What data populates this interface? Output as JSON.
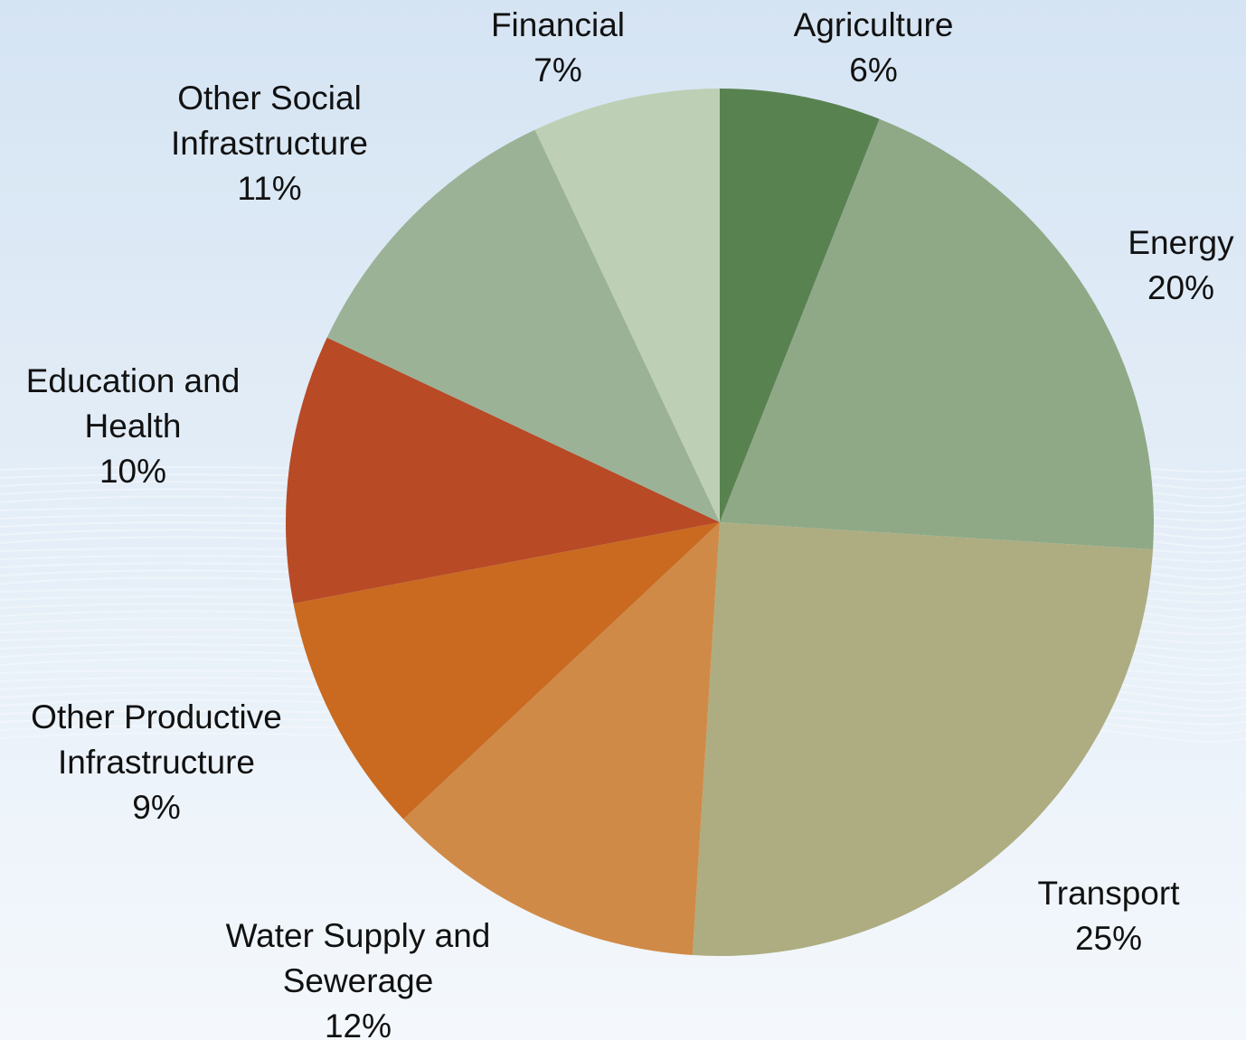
{
  "chart_data": {
    "type": "pie",
    "start_angle_deg": 0,
    "direction": "clockwise",
    "slices": [
      {
        "label": [
          "Agriculture"
        ],
        "value": 6,
        "percent_label": "6%",
        "color": "#598251"
      },
      {
        "label": [
          "Energy"
        ],
        "value": 20,
        "percent_label": "20%",
        "color": "#8fa987"
      },
      {
        "label": [
          "Transport"
        ],
        "value": 25,
        "percent_label": "25%",
        "color": "#adad81"
      },
      {
        "label": [
          "Water Supply and",
          "Sewerage"
        ],
        "value": 12,
        "percent_label": "12%",
        "color": "#d08a47"
      },
      {
        "label": [
          "Other Productive",
          "Infrastructure"
        ],
        "value": 9,
        "percent_label": "9%",
        "color": "#c96a20"
      },
      {
        "label": [
          "Education and",
          "Health"
        ],
        "value": 10,
        "percent_label": "10%",
        "color": "#b84a26"
      },
      {
        "label": [
          "Other Social",
          "Infrastructure"
        ],
        "value": 11,
        "percent_label": "11%",
        "color": "#9cb297"
      },
      {
        "label": [
          "Financial"
        ],
        "value": 7,
        "percent_label": "7%",
        "color": "#bdd0b5"
      }
    ]
  }
}
